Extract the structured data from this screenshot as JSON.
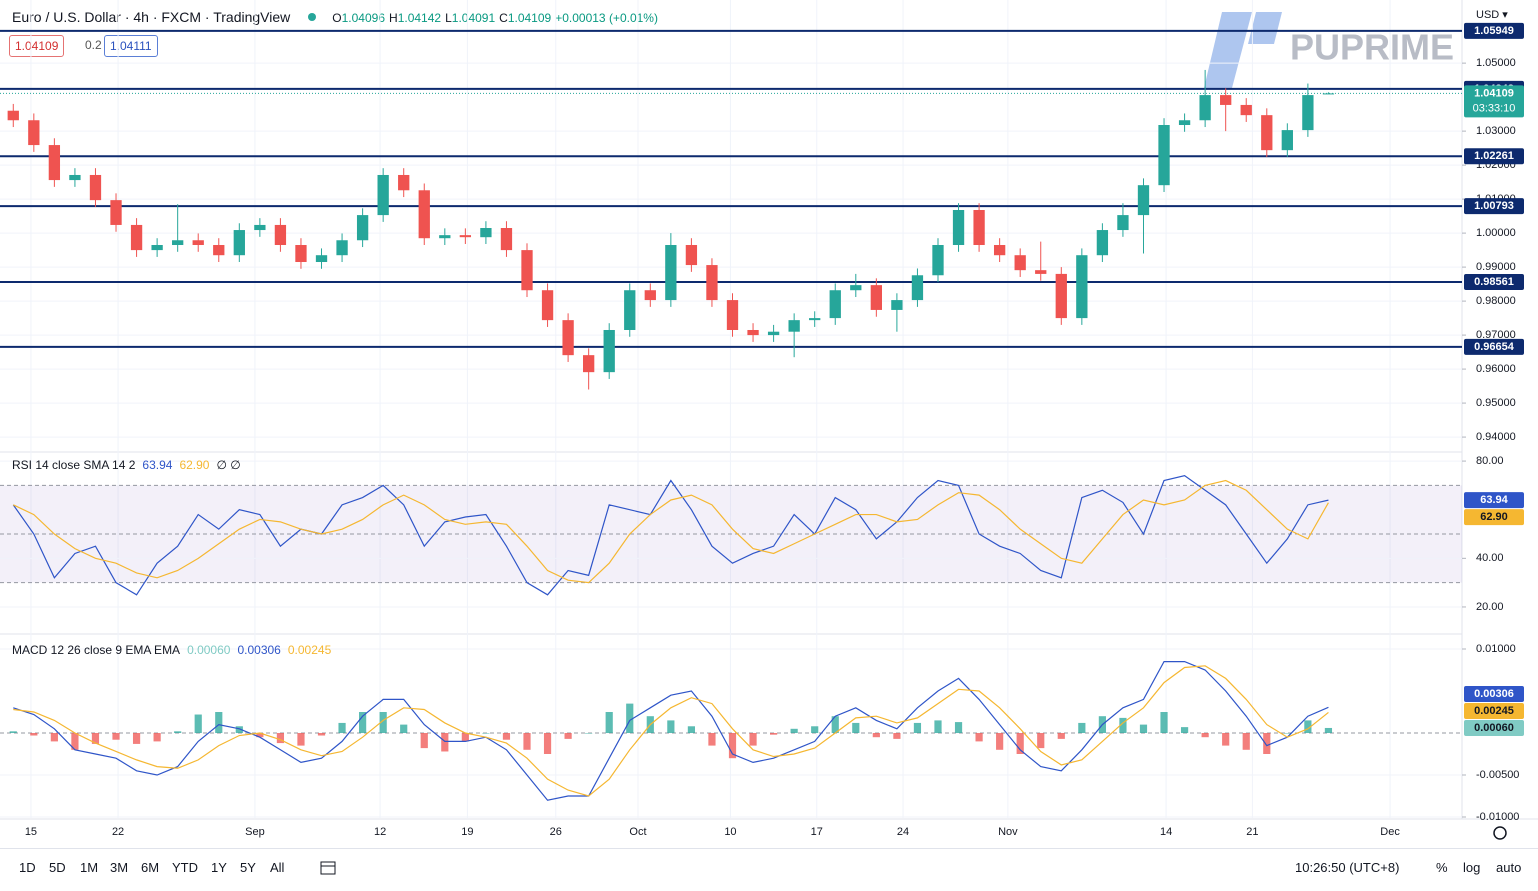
{
  "header": {
    "title": "Euro / U.S. Dollar · 4h · FXCM · TradingView",
    "quote_labels": [
      "O",
      "H",
      "L",
      "C"
    ],
    "change": "+0.00013 (+0.01%)",
    "order": {
      "sell": "1.04109",
      "spread": "0.2",
      "buy": "1.04111"
    },
    "currency": "USD",
    "logo": "PUPRIME"
  },
  "chart_data": [
    {
      "type": "candlestick",
      "up_color": "#26a69a",
      "down_color": "#ef5350",
      "open": [
        1.036,
        1.0332,
        1.0259,
        1.0156,
        1.0171,
        1.0097,
        1.0024,
        0.995,
        0.9965,
        0.9979,
        0.9965,
        0.9935,
        1.0009,
        1.0024,
        0.9965,
        0.9915,
        0.9935,
        0.9979,
        1.0053,
        1.0171,
        1.0126,
        0.9985,
        0.9994,
        0.9988,
        1.0015,
        0.995,
        0.9832,
        0.9744,
        0.9641,
        0.9591,
        0.9715,
        0.9832,
        0.9803,
        0.9965,
        0.9906,
        0.9803,
        0.9715,
        0.97,
        0.971,
        0.9744,
        0.975,
        0.9832,
        0.9847,
        0.9774,
        0.9803,
        0.9876,
        0.9965,
        1.0068,
        0.9965,
        0.9935,
        0.9891,
        0.988,
        0.975,
        0.9935,
        1.0009,
        1.0053,
        1.0141,
        1.0318,
        1.0332,
        1.0406,
        1.0377,
        1.0347,
        1.0244,
        1.0303,
        1.04096
      ],
      "high": [
        1.038,
        1.0352,
        1.0279,
        1.0191,
        1.0191,
        1.0117,
        1.0044,
        0.9985,
        1.0085,
        0.9999,
        0.9985,
        1.0029,
        1.0044,
        1.0044,
        0.9985,
        0.9955,
        0.9999,
        1.0073,
        1.0191,
        1.0191,
        1.0146,
        1.0014,
        1.0014,
        1.0035,
        1.0035,
        0.997,
        0.9852,
        0.9764,
        0.9661,
        0.9735,
        0.9852,
        0.9852,
        1.0,
        0.9985,
        0.9926,
        0.9823,
        0.9735,
        0.973,
        0.9764,
        0.977,
        0.9852,
        0.988,
        0.9867,
        0.9823,
        0.9896,
        0.9985,
        1.0088,
        1.0088,
        0.9985,
        0.9955,
        0.9975,
        0.99,
        0.9955,
        1.0029,
        1.0088,
        1.0161,
        1.0338,
        1.0352,
        1.048,
        1.0426,
        1.0397,
        1.0367,
        1.0323,
        1.044,
        1.04142
      ],
      "low": [
        1.0312,
        1.0239,
        1.0136,
        1.0136,
        1.0077,
        1.0004,
        0.993,
        0.993,
        0.9945,
        0.9945,
        0.9915,
        0.9915,
        0.9989,
        0.9945,
        0.9895,
        0.9895,
        0.9915,
        0.9959,
        1.0033,
        1.0106,
        0.9965,
        0.9965,
        0.9968,
        0.9968,
        0.993,
        0.9812,
        0.9724,
        0.9621,
        0.954,
        0.9571,
        0.9695,
        0.9783,
        0.9783,
        0.9886,
        0.9783,
        0.9695,
        0.968,
        0.968,
        0.9635,
        0.9724,
        0.973,
        0.9812,
        0.9754,
        0.971,
        0.9783,
        0.9856,
        0.9945,
        0.9945,
        0.9915,
        0.9871,
        0.986,
        0.973,
        0.973,
        0.9915,
        0.9989,
        0.994,
        1.0121,
        1.0298,
        1.0312,
        1.03,
        1.0327,
        1.0224,
        1.0224,
        1.0283,
        1.04091
      ],
      "close": [
        1.0332,
        1.0259,
        1.0156,
        1.0171,
        1.0097,
        1.0024,
        0.995,
        0.9965,
        0.9979,
        0.9965,
        0.9935,
        1.0009,
        1.0024,
        0.9965,
        0.9915,
        0.9935,
        0.9979,
        1.0053,
        1.0171,
        1.0126,
        0.9985,
        0.9994,
        0.9988,
        1.0015,
        0.995,
        0.9832,
        0.9744,
        0.9641,
        0.9591,
        0.9715,
        0.9832,
        0.9803,
        0.9965,
        0.9906,
        0.9803,
        0.9715,
        0.97,
        0.971,
        0.9744,
        0.975,
        0.9832,
        0.9847,
        0.9774,
        0.9803,
        0.9876,
        0.9965,
        1.0068,
        0.9965,
        0.9935,
        0.9891,
        0.988,
        0.975,
        0.9935,
        1.0009,
        1.0053,
        1.0141,
        1.0318,
        1.0332,
        1.0406,
        1.0377,
        1.0347,
        1.0244,
        1.0303,
        1.0406,
        1.04109
      ],
      "ylim": [
        0.9362,
        1.0671
      ],
      "yticks": [
        {
          "value": 1.05,
          "label": "1.05000"
        },
        {
          "value": 1.03,
          "label": "1.03000"
        },
        {
          "value": 1.02,
          "label": "1.02000"
        },
        {
          "value": 1.01,
          "label": "1.01000"
        },
        {
          "value": 1.0,
          "label": "1.00000"
        },
        {
          "value": 0.99,
          "label": "0.99000"
        },
        {
          "value": 0.98,
          "label": "0.98000"
        },
        {
          "value": 0.97,
          "label": "0.97000"
        },
        {
          "value": 0.96,
          "label": "0.96000"
        },
        {
          "value": 0.95,
          "label": "0.95000"
        },
        {
          "value": 0.94,
          "label": "0.94000"
        }
      ],
      "xlim": [
        0,
        71
      ],
      "xticks": [
        {
          "value": 1.36,
          "label": "15"
        },
        {
          "value": 5.6,
          "label": "22"
        },
        {
          "value": 12.26,
          "label": "Sep"
        },
        {
          "value": 18.35,
          "label": "12"
        },
        {
          "value": 22.6,
          "label": "19"
        },
        {
          "value": 26.9,
          "label": "26"
        },
        {
          "value": 30.9,
          "label": "Oct"
        },
        {
          "value": 35.4,
          "label": "10"
        },
        {
          "value": 39.6,
          "label": "17"
        },
        {
          "value": 43.8,
          "label": "24"
        },
        {
          "value": 48.9,
          "label": "Nov"
        },
        {
          "value": 56.6,
          "label": "14"
        },
        {
          "value": 60.8,
          "label": "21"
        },
        {
          "value": 67.5,
          "label": "Dec"
        }
      ],
      "grid": true,
      "levels": [
        1.05949,
        1.04242,
        1.02261,
        1.00793,
        0.98561,
        0.96654
      ],
      "level_color": "#0d2a6e",
      "countdown": "03:33:10"
    },
    {
      "type": "line",
      "title": "RSI 14 close SMA 14 2",
      "flags": "∅ ∅",
      "series": [
        {
          "color": "#2f55c8",
          "values": [
            62,
            50,
            32,
            42,
            45,
            30,
            25,
            38,
            45,
            58,
            52,
            60,
            58,
            45,
            52,
            50,
            62,
            65,
            70,
            62,
            45,
            55,
            57,
            58,
            45,
            30,
            25,
            35,
            33,
            62,
            60,
            58,
            72,
            60,
            45,
            38,
            42,
            45,
            58,
            50,
            65,
            60,
            48,
            55,
            65,
            72,
            70,
            50,
            45,
            42,
            35,
            32,
            65,
            68,
            63,
            50,
            72,
            74,
            68,
            62,
            50,
            38,
            48,
            62,
            63.94
          ]
        },
        {
          "color": "#f5b731",
          "values": [
            62,
            58,
            50,
            44,
            40,
            38,
            34,
            32,
            35,
            40,
            46,
            52,
            56,
            55,
            52,
            50,
            52,
            56,
            62,
            66,
            62,
            56,
            54,
            55,
            54,
            45,
            35,
            31,
            30,
            38,
            50,
            58,
            64,
            66,
            62,
            52,
            44,
            42,
            46,
            50,
            54,
            58,
            58,
            55,
            56,
            62,
            67,
            66,
            60,
            52,
            46,
            40,
            38,
            48,
            58,
            64,
            62,
            64,
            70,
            72,
            68,
            60,
            52,
            48,
            62.9
          ],
          "value_labels": [
            null,
            null,
            null,
            null,
            null,
            null,
            null,
            null,
            null,
            null,
            null,
            null,
            null,
            null,
            null,
            null,
            null,
            null,
            null,
            null,
            null,
            null,
            null,
            null,
            null,
            null,
            null,
            null,
            null,
            null,
            null,
            null,
            null,
            null,
            null,
            null,
            null,
            null,
            null,
            null,
            null,
            null,
            null,
            null,
            null,
            null,
            null,
            null,
            null,
            null,
            null,
            null,
            null,
            null,
            null,
            null,
            null,
            null,
            null,
            null,
            null,
            null,
            null,
            null,
            "62.90"
          ]
        }
      ],
      "ylim": [
        9.7,
        82.5
      ],
      "yticks": [
        {
          "value": 80,
          "label": "80.00"
        },
        {
          "value": 40,
          "label": "40.00"
        },
        {
          "value": 20,
          "label": "20.00"
        }
      ],
      "band": [
        30,
        70
      ],
      "midline": 50,
      "band_color": "#7e57c2"
    },
    {
      "type": "macd",
      "title": "MACD 12 26 close 9 EMA EMA",
      "histogram": {
        "up_color": "#26a69a",
        "down_color": "#ef5350",
        "label_color": "#80cbc4",
        "values": [
          0.0002,
          -0.0003,
          -0.001,
          -0.002,
          -0.0013,
          -0.0008,
          -0.0013,
          -0.001,
          0.0002,
          0.0022,
          0.0025,
          0.0008,
          -0.0005,
          -0.0012,
          -0.0015,
          -0.0003,
          0.0012,
          0.0025,
          0.0025,
          0.001,
          -0.0018,
          -0.0022,
          -0.001,
          0.0,
          -0.0008,
          -0.002,
          -0.0025,
          -0.0007,
          0.0,
          0.0025,
          0.0035,
          0.002,
          0.0015,
          0.0008,
          -0.0015,
          -0.003,
          -0.0015,
          -0.0002,
          0.0005,
          0.0008,
          0.002,
          0.0012,
          -0.0005,
          -0.0007,
          0.0012,
          0.0015,
          0.0013,
          -0.001,
          -0.002,
          -0.0025,
          -0.0018,
          -0.0007,
          0.0012,
          0.002,
          0.0018,
          0.001,
          0.0025,
          0.0007,
          -0.0005,
          -0.0015,
          -0.002,
          -0.0025,
          0.0,
          0.0015,
          0.0006
        ],
        "value_labels": [
          null,
          null,
          null,
          null,
          null,
          null,
          null,
          null,
          null,
          null,
          null,
          null,
          null,
          null,
          null,
          null,
          null,
          null,
          null,
          null,
          null,
          null,
          null,
          null,
          null,
          null,
          null,
          null,
          null,
          null,
          null,
          null,
          null,
          null,
          null,
          null,
          null,
          null,
          null,
          null,
          null,
          null,
          null,
          null,
          null,
          null,
          null,
          null,
          null,
          null,
          null,
          null,
          null,
          null,
          null,
          null,
          null,
          null,
          null,
          null,
          null,
          null,
          null,
          null,
          "0.00060"
        ]
      },
      "series": [
        {
          "color": "#2f55c8",
          "values": [
            0.003,
            0.0022,
            0.0005,
            -0.002,
            -0.0025,
            -0.003,
            -0.0045,
            -0.005,
            -0.004,
            -0.001,
            0.001,
            0.0005,
            -0.0005,
            -0.002,
            -0.0035,
            -0.003,
            -0.001,
            0.002,
            0.004,
            0.004,
            0.001,
            -0.001,
            -0.001,
            -0.0005,
            -0.002,
            -0.005,
            -0.008,
            -0.0075,
            -0.0075,
            -0.003,
            0.0015,
            0.003,
            0.0045,
            0.005,
            0.002,
            -0.0025,
            -0.0035,
            -0.003,
            -0.002,
            -0.001,
            0.002,
            0.003,
            0.0015,
            0.0005,
            0.003,
            0.005,
            0.0065,
            0.004,
            0.001,
            -0.002,
            -0.004,
            -0.0045,
            -0.002,
            0.001,
            0.003,
            0.004,
            0.0085,
            0.0085,
            0.0075,
            0.005,
            0.002,
            -0.0015,
            -0.0005,
            0.002,
            0.00306
          ]
        },
        {
          "color": "#f5b731",
          "values": [
            0.0028,
            0.0025,
            0.0015,
            0.0,
            -0.0012,
            -0.0022,
            -0.0032,
            -0.004,
            -0.0042,
            -0.0032,
            -0.0015,
            -0.0003,
            0.0,
            -0.0008,
            -0.002,
            -0.0027,
            -0.0022,
            -0.0005,
            0.0015,
            0.003,
            0.0028,
            0.0012,
            0.0,
            -0.0005,
            -0.0012,
            -0.003,
            -0.0055,
            -0.0068,
            -0.0075,
            -0.0055,
            -0.002,
            0.001,
            0.003,
            0.0042,
            0.0035,
            0.0005,
            -0.002,
            -0.0028,
            -0.0025,
            -0.0018,
            0.0,
            0.0018,
            0.002,
            0.0012,
            0.0018,
            0.0035,
            0.0052,
            0.005,
            0.003,
            0.0005,
            -0.0022,
            -0.0038,
            -0.0032,
            -0.001,
            0.0012,
            0.003,
            0.006,
            0.0078,
            0.008,
            0.0065,
            0.004,
            0.001,
            -0.0005,
            0.0005,
            0.00245
          ]
        }
      ],
      "ylim": [
        -0.01012,
        0.01143
      ],
      "yticks": [
        {
          "value": 0.01,
          "label": "0.01000"
        },
        {
          "value": -0.005,
          "label": "-0.00500"
        },
        {
          "value": -0.01,
          "label": "-0.01000"
        }
      ]
    }
  ],
  "toolbar": {
    "ranges": [
      "1D",
      "5D",
      "1M",
      "3M",
      "6M",
      "YTD",
      "1Y",
      "5Y",
      "All"
    ],
    "clock": "10:26:50 (UTC+8)",
    "options": [
      "%",
      "log",
      "auto"
    ]
  }
}
